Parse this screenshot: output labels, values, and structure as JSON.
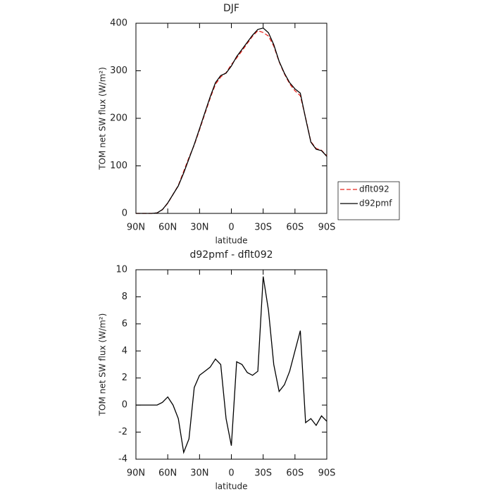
{
  "chart_data": [
    {
      "type": "line",
      "title": "DJF",
      "xlabel": "latitude",
      "ylabel": "TOM net SW flux (W/m²)",
      "x": [
        90,
        85,
        80,
        75,
        70,
        65,
        60,
        55,
        50,
        45,
        40,
        35,
        30,
        25,
        20,
        15,
        10,
        5,
        0,
        -5,
        -10,
        -15,
        -20,
        -25,
        -30,
        -35,
        -40,
        -45,
        -50,
        -55,
        -60,
        -65,
        -70,
        -75,
        -80,
        -85,
        -90
      ],
      "series": [
        {
          "name": "dflt092",
          "color": "#e8261f",
          "dashed": true,
          "values": [
            0,
            0,
            0,
            0,
            1,
            7.8,
            21.4,
            40,
            59,
            88.5,
            117.5,
            143.7,
            175.8,
            209.5,
            242.2,
            271.6,
            287,
            296,
            313,
            326.8,
            342,
            357.6,
            372.8,
            384.5,
            380.5,
            373,
            352,
            319,
            293.5,
            272.5,
            258,
            247.5,
            201.3,
            151,
            136.5,
            132.8,
            121.2
          ]
        },
        {
          "name": "d92pmf",
          "color": "#000000",
          "dashed": false,
          "values": [
            0,
            0,
            0,
            0,
            1,
            8,
            22,
            40,
            58,
            85,
            115,
            145,
            178,
            212,
            245,
            275,
            290,
            295,
            310,
            330,
            345,
            360,
            375,
            387,
            390,
            380,
            355,
            320,
            295,
            275,
            262,
            253,
            200,
            150,
            135,
            132,
            120
          ]
        }
      ],
      "xlim": [
        90,
        -90
      ],
      "xticks": [
        {
          "value": 90,
          "label": "90N"
        },
        {
          "value": 60,
          "label": "60N"
        },
        {
          "value": 30,
          "label": "30N"
        },
        0,
        {
          "value": -30,
          "label": "30S"
        },
        {
          "value": -60,
          "label": "60S"
        },
        {
          "value": -90,
          "label": "90S"
        }
      ],
      "ylim": [
        0,
        400
      ],
      "yticks": [
        0,
        100,
        200,
        300,
        400
      ],
      "legend": "right"
    },
    {
      "type": "line",
      "title": "d92pmf - dflt092",
      "xlabel": "latitude",
      "ylabel": "TOM net SW flux (W/m²)",
      "x": [
        90,
        85,
        80,
        75,
        70,
        65,
        60,
        55,
        50,
        45,
        40,
        35,
        30,
        25,
        20,
        15,
        10,
        5,
        0,
        -5,
        -10,
        -15,
        -20,
        -25,
        -30,
        -35,
        -40,
        -45,
        -50,
        -55,
        -60,
        -65,
        -70,
        -75,
        -80,
        -85,
        -90
      ],
      "values": [
        0,
        0,
        0,
        0,
        0,
        0.2,
        0.6,
        0,
        -1.0,
        -3.5,
        -2.5,
        1.3,
        2.2,
        2.5,
        2.8,
        3.4,
        3.0,
        -1.0,
        -3.0,
        3.2,
        3.0,
        2.4,
        2.2,
        2.5,
        9.5,
        7.0,
        3.0,
        1.0,
        1.5,
        2.5,
        4.0,
        5.5,
        -1.3,
        -1.0,
        -1.5,
        -0.8,
        -1.2
      ],
      "color": "#000000",
      "xlim": [
        90,
        -90
      ],
      "xticks": [
        {
          "value": 90,
          "label": "90N"
        },
        {
          "value": 60,
          "label": "60N"
        },
        {
          "value": 30,
          "label": "30N"
        },
        0,
        {
          "value": -30,
          "label": "30S"
        },
        {
          "value": -60,
          "label": "60S"
        },
        {
          "value": -90,
          "label": "90S"
        }
      ],
      "ylim": [
        -4,
        10
      ],
      "yticks": [
        -4,
        -2,
        0,
        2,
        4,
        6,
        8,
        10
      ]
    }
  ]
}
